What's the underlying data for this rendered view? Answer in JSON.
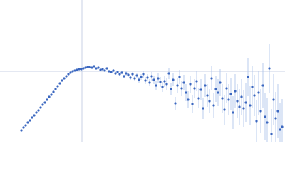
{
  "chart_data": {
    "type": "scatter",
    "xlim": [
      0,
      400
    ],
    "ylim": [
      0,
      200
    ],
    "hline": 100,
    "vline": 115,
    "refline_color": "#c8d2e4",
    "color": "#3b67c0",
    "error_color": "#a9bfe8",
    "x": [
      30,
      33,
      36,
      39,
      42,
      45,
      48,
      51,
      54,
      57,
      60,
      63,
      66,
      69,
      72,
      75,
      78,
      81,
      84,
      87,
      90,
      93,
      96,
      99,
      102,
      105,
      108,
      111,
      114,
      117,
      120,
      123,
      126,
      129,
      132,
      135,
      138,
      141,
      144,
      147,
      150,
      153,
      156,
      159,
      162,
      165,
      168,
      171,
      174,
      177,
      180,
      183,
      186,
      189,
      192,
      195,
      198,
      201,
      204,
      207,
      210,
      213,
      216,
      219,
      222,
      225,
      228,
      231,
      234,
      237,
      240,
      243,
      246,
      249,
      252,
      255,
      258,
      261,
      264,
      267,
      270,
      273,
      276,
      279,
      282,
      285,
      288,
      291,
      294,
      297,
      300,
      303,
      306,
      309,
      312,
      315,
      318,
      321,
      324,
      327,
      330,
      333,
      336,
      339,
      342,
      345,
      348,
      351,
      354,
      357,
      360,
      363,
      366,
      369,
      372,
      375,
      378,
      381,
      384,
      387,
      390,
      393,
      396
    ],
    "values": [
      17,
      21,
      24,
      28,
      31,
      35,
      38,
      42,
      45,
      49,
      53,
      56,
      60,
      64,
      67,
      71,
      75,
      79,
      83,
      87,
      90,
      93,
      96,
      98,
      100,
      101,
      102,
      103,
      103,
      104,
      105,
      106,
      106,
      105,
      107,
      104,
      105,
      102,
      103,
      101,
      104,
      100,
      99,
      101,
      97,
      99,
      96,
      98,
      93,
      97,
      95,
      91,
      96,
      90,
      94,
      88,
      92,
      96,
      87,
      91,
      84,
      93,
      88,
      80,
      90,
      85,
      78,
      86,
      82,
      97,
      75,
      88,
      55,
      80,
      92,
      76,
      84,
      70,
      60,
      82,
      54,
      76,
      86,
      62,
      74,
      48,
      80,
      66,
      58,
      90,
      52,
      75,
      70,
      84,
      62,
      46,
      76,
      60,
      68,
      42,
      72,
      58,
      50,
      64,
      48,
      56,
      92,
      52,
      78,
      66,
      30,
      70,
      44,
      80,
      36,
      28,
      104,
      12,
      60,
      34,
      44,
      18,
      22
    ],
    "errors": [
      1,
      1,
      1,
      1,
      1,
      1,
      1,
      1,
      1,
      1,
      1,
      1,
      1,
      1,
      1,
      1,
      1,
      1,
      1,
      1,
      1,
      1,
      1,
      1,
      1,
      1,
      1,
      1,
      1,
      1,
      1,
      1,
      1,
      1,
      1,
      1,
      1,
      1,
      1,
      1,
      1,
      1,
      1,
      2,
      2,
      2,
      2,
      2,
      2,
      3,
      3,
      3,
      3,
      4,
      4,
      4,
      4,
      5,
      5,
      5,
      5,
      6,
      6,
      6,
      7,
      7,
      7,
      8,
      8,
      8,
      9,
      9,
      9,
      10,
      10,
      11,
      11,
      12,
      12,
      12,
      13,
      13,
      14,
      14,
      15,
      15,
      16,
      16,
      17,
      17,
      18,
      18,
      19,
      19,
      20,
      21,
      21,
      22,
      22,
      23,
      24,
      24,
      25,
      25,
      26,
      27,
      27,
      28,
      29,
      29,
      30,
      31,
      31,
      32,
      33,
      34,
      34,
      35,
      36,
      37,
      38,
      38,
      39
    ]
  }
}
